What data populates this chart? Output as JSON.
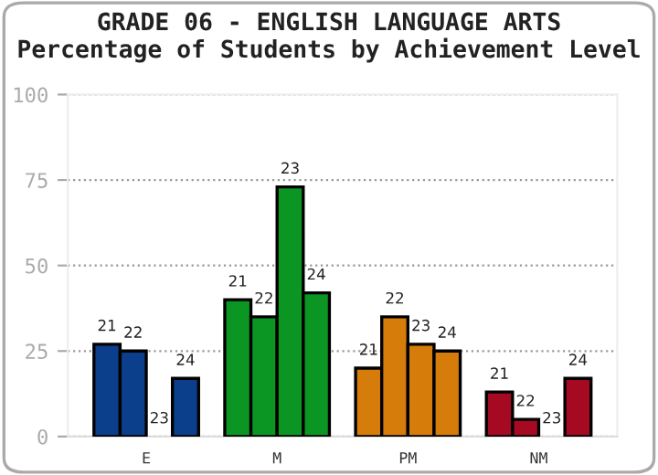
{
  "chart_data": {
    "type": "bar",
    "title": "GRADE 06 - ENGLISH LANGUAGE ARTS",
    "subtitle": "Percentage of Students by Achievement Level",
    "categories": [
      "E",
      "M",
      "PM",
      "NM"
    ],
    "series": [
      {
        "name": "21",
        "colors": [
          "#0b3f8c",
          "#0b9624",
          "#d57c0a",
          "#a50a22"
        ],
        "values": [
          27,
          40,
          20,
          13
        ]
      },
      {
        "name": "22",
        "colors": [
          "#0b3f8c",
          "#0b9624",
          "#d57c0a",
          "#a50a22"
        ],
        "values": [
          25,
          35,
          35,
          5
        ]
      },
      {
        "name": "23",
        "colors": [
          "#0b3f8c",
          "#0b9624",
          "#d57c0a",
          "#a50a22"
        ],
        "values": [
          0,
          73,
          27,
          0
        ]
      },
      {
        "name": "24",
        "colors": [
          "#0b3f8c",
          "#0b9624",
          "#d57c0a",
          "#a50a22"
        ],
        "values": [
          17,
          42,
          25,
          17
        ]
      }
    ],
    "ylim": [
      0,
      100
    ],
    "yticks": [
      0,
      25,
      50,
      75,
      100
    ],
    "grid": "y",
    "legend": false
  }
}
